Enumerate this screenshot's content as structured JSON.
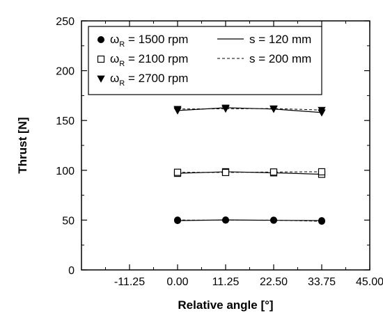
{
  "chart_data": {
    "type": "line",
    "title": "",
    "xlabel": "Relative angle [°]",
    "ylabel": "Thrust [N]",
    "xlim": [
      -22.5,
      45
    ],
    "ylim": [
      0,
      250
    ],
    "x_ticks": [
      -11.25,
      0,
      11.25,
      22.5,
      33.75,
      45
    ],
    "x_tick_labels": [
      "-11.25",
      "0.00",
      "11.25",
      "22.50",
      "33.75",
      "45.00"
    ],
    "y_ticks": [
      0,
      50,
      100,
      150,
      200,
      250
    ],
    "y_tick_labels": [
      "0",
      "50",
      "100",
      "150",
      "200",
      "250"
    ],
    "x": [
      0,
      11.25,
      22.5,
      33.75
    ],
    "grid": false,
    "legend_position": "top-left",
    "legend_entries": [
      {
        "symbol": "circle-filled",
        "label_main": "ω",
        "label_sub": "R",
        "label_rest": " = 1500 rpm"
      },
      {
        "symbol": "square-open",
        "label_main": "ω",
        "label_sub": "R",
        "label_rest": " = 2100 rpm"
      },
      {
        "symbol": "triangle-down-filled",
        "label_main": "ω",
        "label_sub": "R",
        "label_rest": " = 2700 rpm"
      },
      {
        "symbol": "solid-line",
        "label_main": "s = 120 mm"
      },
      {
        "symbol": "dashed-line",
        "label_main": "s = 200 mm"
      }
    ],
    "series": [
      {
        "speed": "1500 rpm",
        "s": "120 mm",
        "line": "solid",
        "marker": "circle-filled",
        "values": [
          49.5,
          50.2,
          49.8,
          49.5
        ]
      },
      {
        "speed": "1500 rpm",
        "s": "200 mm",
        "line": "dashed",
        "marker": "circle-filled",
        "values": [
          50.1,
          49.9,
          50.0,
          48.8
        ]
      },
      {
        "speed": "2100 rpm",
        "s": "120 mm",
        "line": "solid",
        "marker": "square-open",
        "values": [
          97.0,
          98.5,
          97.5,
          96.0
        ]
      },
      {
        "speed": "2100 rpm",
        "s": "200 mm",
        "line": "dashed",
        "marker": "square-open",
        "values": [
          98.0,
          97.8,
          98.3,
          98.5
        ]
      },
      {
        "speed": "2700 rpm",
        "s": "120 mm",
        "line": "solid",
        "marker": "triangle-down-filled",
        "values": [
          160.0,
          162.8,
          161.5,
          158.0
        ]
      },
      {
        "speed": "2700 rpm",
        "s": "200 mm",
        "line": "dashed",
        "marker": "triangle-down-filled",
        "values": [
          161.5,
          161.8,
          162.0,
          160.5
        ]
      }
    ]
  }
}
